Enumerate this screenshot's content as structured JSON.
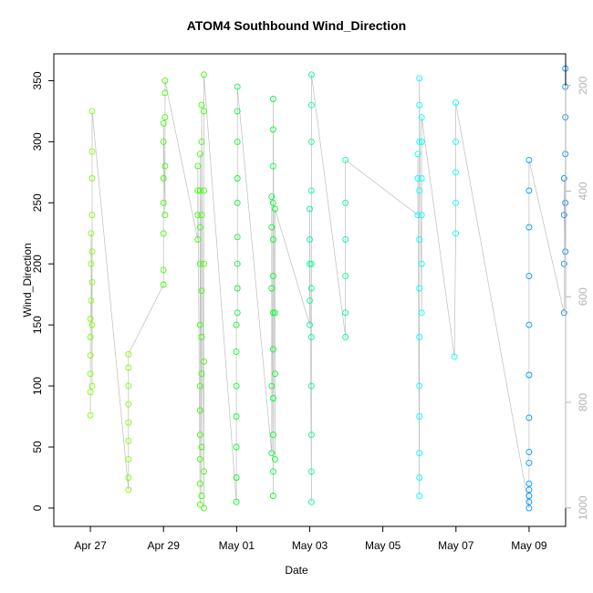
{
  "chart_data": {
    "type": "scatter",
    "title": "ATOM4 Southbound Wind_Direction",
    "xlabel": "Date",
    "ylabel": "Wind_Direction",
    "x_date_range": [
      "2016-04-26",
      "2016-05-10"
    ],
    "x_ticks": [
      "Apr 27",
      "Apr 29",
      "May 01",
      "May 03",
      "May 05",
      "May 07",
      "May 09"
    ],
    "y_ticks": [
      0,
      50,
      100,
      150,
      200,
      250,
      300,
      350
    ],
    "ylim": [
      -15,
      372
    ],
    "y2_ticks": [
      200,
      400,
      600,
      800,
      1000
    ],
    "y2lim": [
      1035,
      140
    ],
    "grid": false,
    "marker": "open circle",
    "colors": {
      "trace_line": "#bebebe",
      "axis": "#000000",
      "y2_axis": "#b4b4b4",
      "series_palette": [
        "#7fff00",
        "#39ff00",
        "#00ff45",
        "#00ffa8",
        "#00ffff",
        "#0096ff"
      ]
    },
    "series": [
      {
        "color": "#7fff00",
        "points": [
          [
            "2016-04-27 00:00",
            76
          ],
          [
            "2016-04-27 00:00",
            95
          ],
          [
            "2016-04-27 00:00",
            110
          ],
          [
            "2016-04-27 00:00",
            125
          ],
          [
            "2016-04-27 00:00",
            140
          ],
          [
            "2016-04-27 00:00",
            155
          ],
          [
            "2016-04-27 01:10",
            100
          ],
          [
            "2016-04-27 01:10",
            150
          ],
          [
            "2016-04-27 01:10",
            185
          ],
          [
            "2016-04-27 01:10",
            210
          ],
          [
            "2016-04-27 01:10",
            240
          ],
          [
            "2016-04-27 01:10",
            270
          ],
          [
            "2016-04-27 01:10",
            292
          ],
          [
            "2016-04-27 01:10",
            325
          ],
          [
            "2016-04-27 00:30",
            170
          ],
          [
            "2016-04-27 00:30",
            200
          ],
          [
            "2016-04-27 00:30",
            225
          ]
        ]
      },
      {
        "color": "#7fff00",
        "points": [
          [
            "2016-04-28 01:00",
            15
          ],
          [
            "2016-04-28 01:00",
            25
          ],
          [
            "2016-04-28 01:00",
            40
          ],
          [
            "2016-04-28 01:00",
            55
          ],
          [
            "2016-04-28 01:00",
            70
          ],
          [
            "2016-04-28 01:00",
            85
          ],
          [
            "2016-04-28 01:00",
            100
          ],
          [
            "2016-04-28 01:00",
            115
          ],
          [
            "2016-04-28 01:00",
            126
          ]
        ]
      },
      {
        "color": "#39ff00",
        "points": [
          [
            "2016-04-29 00:00",
            183
          ],
          [
            "2016-04-29 00:00",
            195
          ],
          [
            "2016-04-29 00:00",
            225
          ],
          [
            "2016-04-29 00:00",
            250
          ],
          [
            "2016-04-29 00:00",
            270
          ],
          [
            "2016-04-29 00:00",
            300
          ],
          [
            "2016-04-29 00:00",
            315
          ],
          [
            "2016-04-29 01:00",
            240
          ],
          [
            "2016-04-29 01:00",
            280
          ],
          [
            "2016-04-29 01:00",
            320
          ],
          [
            "2016-04-29 01:00",
            340
          ],
          [
            "2016-04-29 01:00",
            350
          ]
        ]
      },
      {
        "color": "#39ff00",
        "points": [
          [
            "2016-04-29 22:30",
            220
          ],
          [
            "2016-04-29 22:30",
            240
          ],
          [
            "2016-04-29 22:30",
            260
          ],
          [
            "2016-04-29 22:30",
            280
          ],
          [
            "2016-04-30 00:00",
            3
          ],
          [
            "2016-04-30 00:00",
            20
          ],
          [
            "2016-04-30 00:00",
            40
          ],
          [
            "2016-04-30 00:00",
            60
          ],
          [
            "2016-04-30 00:00",
            80
          ],
          [
            "2016-04-30 00:00",
            100
          ],
          [
            "2016-04-30 00:00",
            150
          ],
          [
            "2016-04-30 00:00",
            200
          ],
          [
            "2016-04-30 00:00",
            230
          ],
          [
            "2016-04-30 00:00",
            260
          ],
          [
            "2016-04-30 00:00",
            290
          ],
          [
            "2016-04-30 01:00",
            10
          ],
          [
            "2016-04-30 01:00",
            50
          ],
          [
            "2016-04-30 01:00",
            110
          ],
          [
            "2016-04-30 01:00",
            140
          ],
          [
            "2016-04-30 01:00",
            178
          ],
          [
            "2016-04-30 01:00",
            240
          ],
          [
            "2016-04-30 01:00",
            300
          ],
          [
            "2016-04-30 01:00",
            330
          ],
          [
            "2016-04-30 02:30",
            0
          ],
          [
            "2016-04-30 02:30",
            30
          ],
          [
            "2016-04-30 02:30",
            120
          ],
          [
            "2016-04-30 02:30",
            200
          ],
          [
            "2016-04-30 02:30",
            260
          ],
          [
            "2016-04-30 02:30",
            325
          ],
          [
            "2016-04-30 02:30",
            355
          ]
        ]
      },
      {
        "color": "#00ff22",
        "points": [
          [
            "2016-04-30 23:50",
            5
          ],
          [
            "2016-04-30 23:50",
            25
          ],
          [
            "2016-04-30 23:50",
            50
          ],
          [
            "2016-04-30 23:50",
            75
          ],
          [
            "2016-04-30 23:50",
            100
          ],
          [
            "2016-04-30 23:50",
            128
          ],
          [
            "2016-04-30 23:50",
            150
          ],
          [
            "2016-05-01 00:30",
            160
          ],
          [
            "2016-05-01 00:30",
            180
          ],
          [
            "2016-05-01 00:30",
            200
          ],
          [
            "2016-05-01 00:30",
            222
          ],
          [
            "2016-05-01 00:30",
            250
          ],
          [
            "2016-05-01 00:30",
            270
          ],
          [
            "2016-05-01 00:30",
            300
          ],
          [
            "2016-05-01 00:30",
            325
          ],
          [
            "2016-05-01 00:30",
            345
          ]
        ]
      },
      {
        "color": "#00ff33",
        "points": [
          [
            "2016-05-01 23:00",
            45
          ],
          [
            "2016-05-01 23:00",
            100
          ],
          [
            "2016-05-01 23:00",
            180
          ],
          [
            "2016-05-01 23:00",
            230
          ],
          [
            "2016-05-01 23:00",
            255
          ],
          [
            "2016-05-02 00:00",
            10
          ],
          [
            "2016-05-02 00:00",
            30
          ],
          [
            "2016-05-02 00:00",
            60
          ],
          [
            "2016-05-02 00:00",
            90
          ],
          [
            "2016-05-02 00:00",
            130
          ],
          [
            "2016-05-02 00:00",
            160
          ],
          [
            "2016-05-02 00:00",
            190
          ],
          [
            "2016-05-02 00:00",
            220
          ],
          [
            "2016-05-02 00:00",
            250
          ],
          [
            "2016-05-02 00:00",
            280
          ],
          [
            "2016-05-02 00:00",
            310
          ],
          [
            "2016-05-02 00:00",
            335
          ],
          [
            "2016-05-02 01:10",
            40
          ],
          [
            "2016-05-02 01:10",
            110
          ],
          [
            "2016-05-02 01:10",
            160
          ],
          [
            "2016-05-02 01:10",
            245
          ]
        ]
      },
      {
        "color": "#00ff90",
        "points": [
          [
            "2016-05-03 00:00",
            150
          ],
          [
            "2016-05-03 00:00",
            170
          ],
          [
            "2016-05-03 00:00",
            200
          ],
          [
            "2016-05-03 00:00",
            220
          ],
          [
            "2016-05-03 00:00",
            245
          ],
          [
            "2016-05-03 01:10",
            5
          ],
          [
            "2016-05-03 01:10",
            30
          ],
          [
            "2016-05-03 01:10",
            60
          ],
          [
            "2016-05-03 01:10",
            100
          ],
          [
            "2016-05-03 01:10",
            140
          ],
          [
            "2016-05-03 01:10",
            180
          ],
          [
            "2016-05-03 01:10",
            200
          ],
          [
            "2016-05-03 01:10",
            260
          ],
          [
            "2016-05-03 01:10",
            300
          ],
          [
            "2016-05-03 01:10",
            330
          ],
          [
            "2016-05-03 01:10",
            355
          ],
          [
            "2016-05-03 23:30",
            140
          ],
          [
            "2016-05-03 23:30",
            160
          ],
          [
            "2016-05-03 23:30",
            190
          ],
          [
            "2016-05-03 23:30",
            220
          ],
          [
            "2016-05-03 23:30",
            250
          ],
          [
            "2016-05-03 23:30",
            285
          ]
        ]
      },
      {
        "color": "#00ffff",
        "points": [
          [
            "2016-05-05 23:00",
            240
          ],
          [
            "2016-05-05 23:00",
            270
          ],
          [
            "2016-05-05 23:00",
            290
          ],
          [
            "2016-05-06 00:00",
            10
          ],
          [
            "2016-05-06 00:00",
            25
          ],
          [
            "2016-05-06 00:00",
            45
          ],
          [
            "2016-05-06 00:00",
            75
          ],
          [
            "2016-05-06 00:00",
            100
          ],
          [
            "2016-05-06 00:00",
            140
          ],
          [
            "2016-05-06 00:00",
            180
          ],
          [
            "2016-05-06 00:00",
            220
          ],
          [
            "2016-05-06 00:00",
            260
          ],
          [
            "2016-05-06 00:00",
            300
          ],
          [
            "2016-05-06 00:00",
            330
          ],
          [
            "2016-05-06 00:00",
            352
          ],
          [
            "2016-05-06 01:30",
            160
          ],
          [
            "2016-05-06 01:30",
            200
          ],
          [
            "2016-05-06 01:30",
            240
          ],
          [
            "2016-05-06 01:30",
            270
          ],
          [
            "2016-05-06 01:30",
            300
          ],
          [
            "2016-05-06 01:30",
            320
          ],
          [
            "2016-05-06 23:00",
            124
          ],
          [
            "2016-05-06 23:50",
            225
          ],
          [
            "2016-05-06 23:50",
            250
          ],
          [
            "2016-05-06 23:50",
            275
          ],
          [
            "2016-05-06 23:50",
            300
          ],
          [
            "2016-05-06 23:50",
            332
          ]
        ]
      },
      {
        "color": "#0096ff",
        "points": [
          [
            "2016-05-09 00:00",
            0
          ],
          [
            "2016-05-09 00:00",
            5
          ],
          [
            "2016-05-09 00:00",
            10
          ],
          [
            "2016-05-09 00:00",
            15
          ],
          [
            "2016-05-09 00:00",
            20
          ],
          [
            "2016-05-09 00:00",
            37
          ],
          [
            "2016-05-09 00:00",
            46
          ],
          [
            "2016-05-09 00:00",
            74
          ],
          [
            "2016-05-09 00:00",
            109
          ],
          [
            "2016-05-09 00:00",
            150
          ],
          [
            "2016-05-09 00:00",
            190
          ],
          [
            "2016-05-09 00:00",
            230
          ],
          [
            "2016-05-09 00:00",
            260
          ],
          [
            "2016-05-09 00:00",
            285
          ],
          [
            "2016-05-09 23:00",
            160
          ],
          [
            "2016-05-09 23:00",
            200
          ],
          [
            "2016-05-09 23:00",
            240
          ],
          [
            "2016-05-09 23:00",
            270
          ],
          [
            "2016-05-09 23:50",
            210
          ],
          [
            "2016-05-09 23:50",
            250
          ],
          [
            "2016-05-09 23:50",
            290
          ],
          [
            "2016-05-09 23:50",
            320
          ],
          [
            "2016-05-09 23:50",
            345
          ],
          [
            "2016-05-09 23:50",
            360
          ]
        ]
      }
    ]
  }
}
